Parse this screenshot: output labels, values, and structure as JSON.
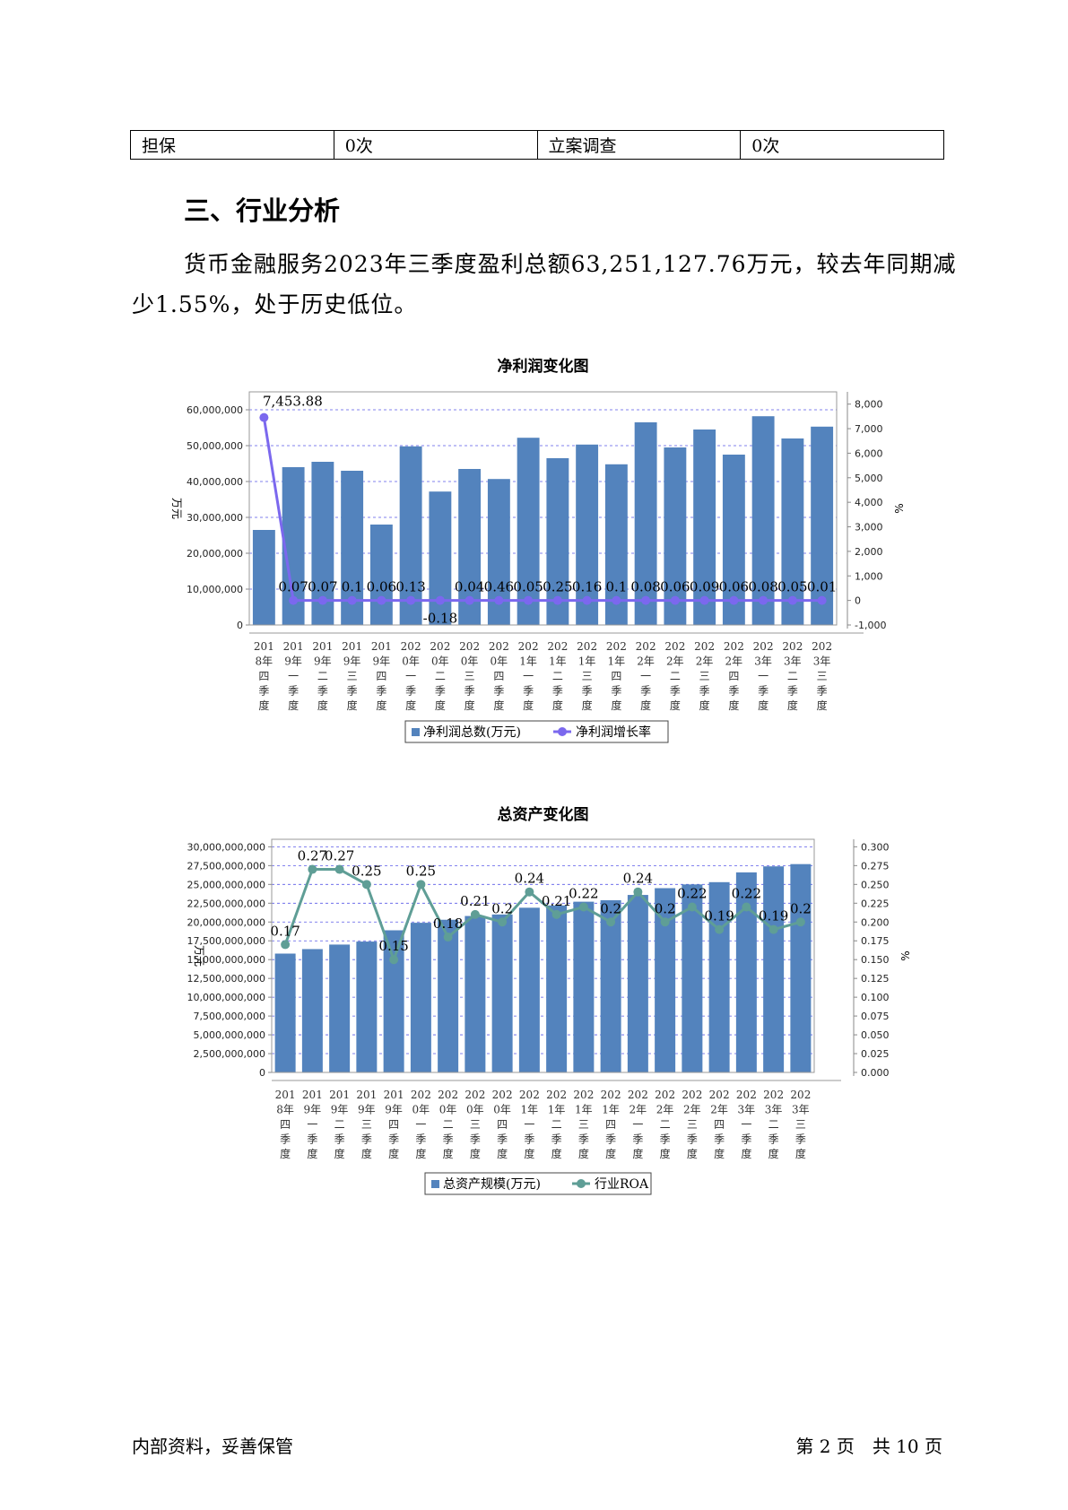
{
  "table": {
    "rows": [
      {
        "c1": "担保",
        "c2": "0次",
        "c3": "立案调查",
        "c4": "0次"
      }
    ]
  },
  "section": {
    "title": "三、行业分析"
  },
  "paragraph": {
    "text": "货币金融服务2023年三季度盈利总额63,251,127.76万元，较去年同期减少1.55%，处于历史低位。"
  },
  "footer": {
    "left": "内部资料，妥善保管",
    "right": "第 2 页　共 10 页"
  },
  "chart_data": [
    {
      "type": "bar",
      "title": "净利润变化图",
      "ylabel": "万元",
      "y2label": "%",
      "ylim": [
        0,
        65000000
      ],
      "y_ticks": [
        0,
        10000000,
        20000000,
        30000000,
        40000000,
        50000000,
        60000000
      ],
      "y_tick_labels": [
        "0",
        "10,000,000",
        "20,000,000",
        "30,000,000",
        "40,000,000",
        "50,000,000",
        "60,000,000"
      ],
      "y2lim": [
        -1000,
        8500
      ],
      "y2_ticks": [
        -1000,
        0,
        1000,
        2000,
        3000,
        4000,
        5000,
        6000,
        7000,
        8000
      ],
      "y2_tick_labels": [
        "-1,000",
        "0",
        "1,000",
        "2,000",
        "3,000",
        "4,000",
        "5,000",
        "6,000",
        "7,000",
        "8,000"
      ],
      "categories": [
        "2018年四季度",
        "2019年一季度",
        "2019年二季度",
        "2019年三季度",
        "2019年四季度",
        "2020年一季度",
        "2020年二季度",
        "2020年三季度",
        "2020年四季度",
        "2021年一季度",
        "2021年二季度",
        "2021年三季度",
        "2021年四季度",
        "2022年一季度",
        "2022年二季度",
        "2022年三季度",
        "2022年四季度",
        "2023年一季度",
        "2023年二季度",
        "2023年三季度"
      ],
      "category_lines": [
        [
          "201",
          "8年",
          "四",
          "季",
          "度"
        ],
        [
          "201",
          "9年",
          "一",
          "季",
          "度"
        ],
        [
          "201",
          "9年",
          "二",
          "季",
          "度"
        ],
        [
          "201",
          "9年",
          "三",
          "季",
          "度"
        ],
        [
          "201",
          "9年",
          "四",
          "季",
          "度"
        ],
        [
          "202",
          "0年",
          "一",
          "季",
          "度"
        ],
        [
          "202",
          "0年",
          "二",
          "季",
          "度"
        ],
        [
          "202",
          "0年",
          "三",
          "季",
          "度"
        ],
        [
          "202",
          "0年",
          "四",
          "季",
          "度"
        ],
        [
          "202",
          "1年",
          "一",
          "季",
          "度"
        ],
        [
          "202",
          "1年",
          "二",
          "季",
          "度"
        ],
        [
          "202",
          "1年",
          "三",
          "季",
          "度"
        ],
        [
          "202",
          "1年",
          "四",
          "季",
          "度"
        ],
        [
          "202",
          "2年",
          "一",
          "季",
          "度"
        ],
        [
          "202",
          "2年",
          "二",
          "季",
          "度"
        ],
        [
          "202",
          "2年",
          "三",
          "季",
          "度"
        ],
        [
          "202",
          "2年",
          "四",
          "季",
          "度"
        ],
        [
          "202",
          "3年",
          "一",
          "季",
          "度"
        ],
        [
          "202",
          "3年",
          "二",
          "季",
          "度"
        ],
        [
          "202",
          "3年",
          "三",
          "季",
          "度"
        ]
      ],
      "series": [
        {
          "name": "净利润总数(万元)",
          "kind": "bar",
          "axis": "left",
          "values": [
            26500000,
            44000000,
            45500000,
            43000000,
            28000000,
            49800000,
            37200000,
            43500000,
            40700000,
            52200000,
            46500000,
            50300000,
            44800000,
            56500000,
            49500000,
            54500000,
            47500000,
            58200000,
            52000000,
            55300000
          ]
        },
        {
          "name": "净利润增长率",
          "kind": "line",
          "axis": "right",
          "values": [
            7453.88,
            0.07,
            0.07,
            0.1,
            0.06,
            0.13,
            -0.18,
            0.04,
            0.46,
            0.05,
            0.25,
            0.16,
            0.1,
            0.08,
            0.06,
            0.09,
            0.06,
            0.08,
            0.05,
            0.01
          ],
          "labels": [
            "7,453.88",
            "0.07",
            "0.07",
            "0.1",
            "0.06",
            "0.13",
            "-0.18",
            "0.04",
            "0.46",
            "0.05",
            "0.25",
            "0.16",
            "0.1",
            "0.08",
            "0.06",
            "0.09",
            "0.06",
            "0.08",
            "0.05",
            "0.01"
          ]
        }
      ],
      "grid": true,
      "legend": "bottom",
      "colors": {
        "bar": "#5383bd",
        "line": "#7b68ee",
        "grid": "#5a5ae8"
      }
    },
    {
      "type": "bar",
      "title": "总资产变化图",
      "ylabel": "万元",
      "y2label": "%",
      "ylim": [
        0,
        31000000000
      ],
      "y_ticks": [
        0,
        2500000000,
        5000000000,
        7500000000,
        10000000000,
        12500000000,
        15000000000,
        17500000000,
        20000000000,
        22500000000,
        25000000000,
        27500000000,
        30000000000
      ],
      "y_tick_labels": [
        "0",
        "2,500,000,000",
        "5,000,000,000",
        "7,500,000,000",
        "10,000,000,000",
        "12,500,000,000",
        "15,000,000,000",
        "17,500,000,000",
        "20,000,000,000",
        "22,500,000,000",
        "25,000,000,000",
        "27,500,000,000",
        "30,000,000,000"
      ],
      "y2lim": [
        0,
        0.31
      ],
      "y2_ticks": [
        0,
        0.025,
        0.05,
        0.075,
        0.1,
        0.125,
        0.15,
        0.175,
        0.2,
        0.225,
        0.25,
        0.275,
        0.3
      ],
      "y2_tick_labels": [
        "0.000",
        "0.025",
        "0.050",
        "0.075",
        "0.100",
        "0.125",
        "0.150",
        "0.175",
        "0.200",
        "0.225",
        "0.250",
        "0.275",
        "0.300"
      ],
      "categories": [
        "2018年四季度",
        "2019年一季度",
        "2019年二季度",
        "2019年三季度",
        "2019年四季度",
        "2020年一季度",
        "2020年二季度",
        "2020年三季度",
        "2020年四季度",
        "2021年一季度",
        "2021年二季度",
        "2021年三季度",
        "2021年四季度",
        "2022年一季度",
        "2022年二季度",
        "2022年三季度",
        "2022年四季度",
        "2023年一季度",
        "2023年二季度",
        "2023年三季度"
      ],
      "category_lines": [
        [
          "201",
          "8年",
          "四",
          "季",
          "度"
        ],
        [
          "201",
          "9年",
          "一",
          "季",
          "度"
        ],
        [
          "201",
          "9年",
          "二",
          "季",
          "度"
        ],
        [
          "201",
          "9年",
          "三",
          "季",
          "度"
        ],
        [
          "201",
          "9年",
          "四",
          "季",
          "度"
        ],
        [
          "202",
          "0年",
          "一",
          "季",
          "度"
        ],
        [
          "202",
          "0年",
          "二",
          "季",
          "度"
        ],
        [
          "202",
          "0年",
          "三",
          "季",
          "度"
        ],
        [
          "202",
          "0年",
          "四",
          "季",
          "度"
        ],
        [
          "202",
          "1年",
          "一",
          "季",
          "度"
        ],
        [
          "202",
          "1年",
          "二",
          "季",
          "度"
        ],
        [
          "202",
          "1年",
          "三",
          "季",
          "度"
        ],
        [
          "202",
          "1年",
          "四",
          "季",
          "度"
        ],
        [
          "202",
          "2年",
          "一",
          "季",
          "度"
        ],
        [
          "202",
          "2年",
          "二",
          "季",
          "度"
        ],
        [
          "202",
          "2年",
          "三",
          "季",
          "度"
        ],
        [
          "202",
          "2年",
          "四",
          "季",
          "度"
        ],
        [
          "202",
          "3年",
          "一",
          "季",
          "度"
        ],
        [
          "202",
          "3年",
          "二",
          "季",
          "度"
        ],
        [
          "202",
          "3年",
          "三",
          "季",
          "度"
        ]
      ],
      "series": [
        {
          "name": "总资产规模(万元)",
          "kind": "bar",
          "axis": "left",
          "values": [
            15800000000,
            16400000000,
            17000000000,
            17400000000,
            18900000000,
            19900000000,
            20300000000,
            20800000000,
            21000000000,
            21900000000,
            22200000000,
            22700000000,
            22900000000,
            23600000000,
            24500000000,
            25000000000,
            25300000000,
            26600000000,
            27400000000,
            27700000000
          ]
        },
        {
          "name": "行业ROA",
          "kind": "line",
          "axis": "right",
          "values": [
            0.17,
            0.27,
            0.27,
            0.25,
            0.15,
            0.25,
            0.18,
            0.21,
            0.2,
            0.24,
            0.21,
            0.22,
            0.2,
            0.24,
            0.2,
            0.22,
            0.19,
            0.22,
            0.19,
            0.2
          ],
          "labels": [
            "0.17",
            "0.27",
            "0.27",
            "0.25",
            "0.15",
            "0.25",
            "0.18",
            "0.21",
            "0.2",
            "0.24",
            "0.21",
            "0.22",
            "0.2",
            "0.24",
            "0.2",
            "0.22",
            "0.19",
            "0.22",
            "0.19",
            "0.2"
          ]
        }
      ],
      "grid": true,
      "legend": "bottom",
      "colors": {
        "bar": "#5383bd",
        "line": "#5f9e96",
        "grid": "#5a5ae8"
      }
    }
  ]
}
